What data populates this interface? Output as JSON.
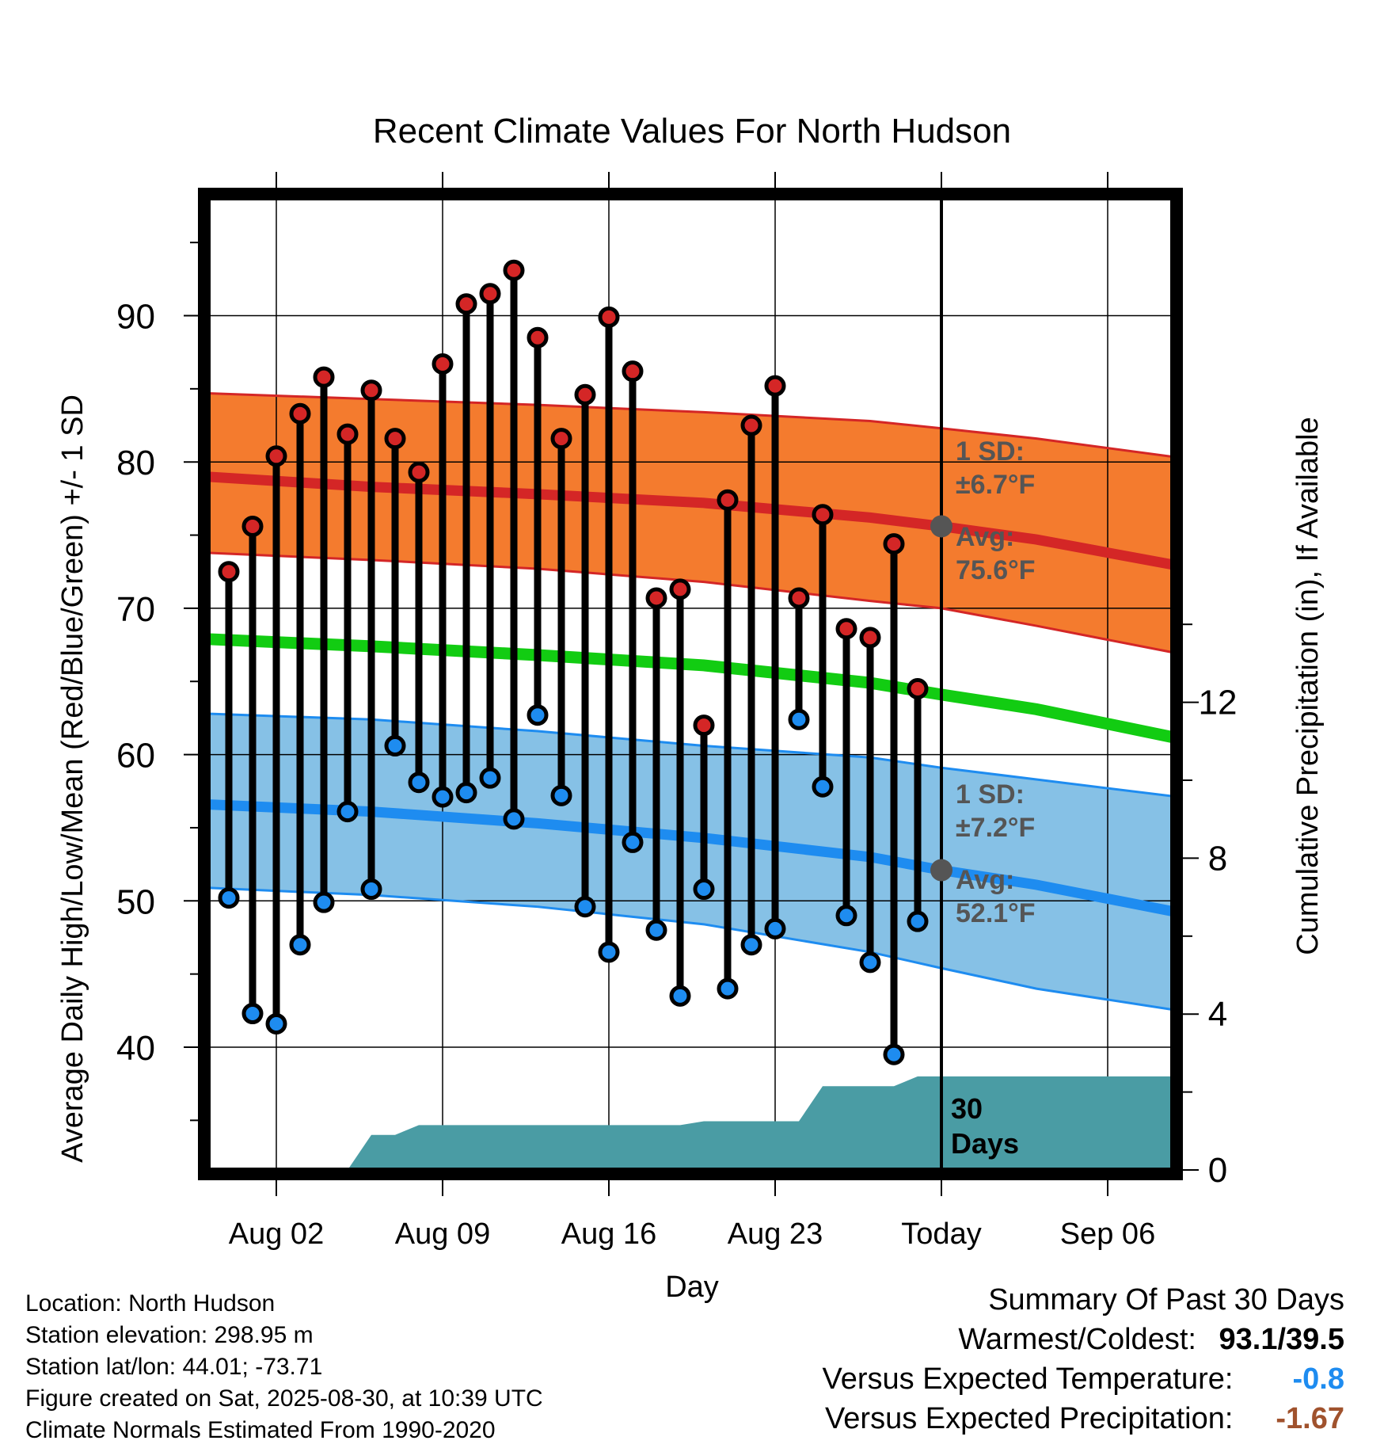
{
  "chart_data": {
    "type": "line",
    "title": "Recent Climate Values For North Hudson",
    "xlabel": "Day",
    "ylabel": "Average Daily High/Low/Mean (Red/Blue/Green) +/- 1 SD",
    "y2label": "Cumulative Precipitation (in), If Available",
    "x_start": "2025-07-31",
    "x_end": "2025-09-09",
    "xlim": [
      "2025-07-30",
      "2025-09-09"
    ],
    "ylim": [
      32,
      98
    ],
    "y2lim": [
      0,
      30
    ],
    "x_ticks": [
      {
        "date": "2025-08-02",
        "label": "Aug 02"
      },
      {
        "date": "2025-08-09",
        "label": "Aug 09"
      },
      {
        "date": "2025-08-16",
        "label": "Aug 16"
      },
      {
        "date": "2025-08-23",
        "label": "Aug 23"
      },
      {
        "date": "2025-08-30",
        "label": "Today"
      },
      {
        "date": "2025-09-06",
        "label": "Sep 06"
      }
    ],
    "y_ticks": [
      40,
      50,
      60,
      70,
      80,
      90
    ],
    "y2_ticks": [
      0,
      4,
      8,
      12
    ],
    "grid": true,
    "today": "2025-08-30",
    "today_label": "30\nDays",
    "dates": [
      "2025-07-31",
      "2025-08-01",
      "2025-08-02",
      "2025-08-03",
      "2025-08-04",
      "2025-08-05",
      "2025-08-06",
      "2025-08-07",
      "2025-08-08",
      "2025-08-09",
      "2025-08-10",
      "2025-08-11",
      "2025-08-12",
      "2025-08-13",
      "2025-08-14",
      "2025-08-15",
      "2025-08-16",
      "2025-08-17",
      "2025-08-18",
      "2025-08-19",
      "2025-08-20",
      "2025-08-21",
      "2025-08-22",
      "2025-08-23",
      "2025-08-24",
      "2025-08-25",
      "2025-08-26",
      "2025-08-27",
      "2025-08-28",
      "2025-08-29"
    ],
    "highs": [
      72.5,
      75.6,
      80.4,
      83.3,
      85.8,
      81.9,
      84.9,
      81.6,
      79.3,
      86.7,
      90.8,
      91.5,
      93.1,
      88.5,
      81.6,
      84.6,
      89.9,
      86.2,
      70.7,
      71.3,
      62.0,
      77.4,
      82.5,
      85.2,
      70.7,
      76.4,
      68.6,
      68.0,
      74.4,
      64.5
    ],
    "lows": [
      50.2,
      42.3,
      41.6,
      47.0,
      49.9,
      56.1,
      50.8,
      60.6,
      58.1,
      57.1,
      57.4,
      58.4,
      55.6,
      62.7,
      57.2,
      49.6,
      46.5,
      54.0,
      48.0,
      43.5,
      50.8,
      44.0,
      47.0,
      48.1,
      62.4,
      57.8,
      49.0,
      45.8,
      39.5,
      48.6
    ],
    "normal_high": {
      "dates": [
        "2025-07-30",
        "2025-08-06",
        "2025-08-13",
        "2025-08-20",
        "2025-08-27",
        "2025-08-30",
        "2025-09-03",
        "2025-09-09"
      ],
      "avg": [
        79.0,
        78.3,
        77.8,
        77.2,
        76.2,
        75.6,
        74.7,
        72.9
      ],
      "upper": [
        84.7,
        84.3,
        83.9,
        83.4,
        82.8,
        82.3,
        81.6,
        80.3
      ],
      "lower": [
        73.8,
        73.3,
        72.7,
        71.8,
        70.5,
        70.0,
        68.8,
        66.9
      ]
    },
    "normal_mean": {
      "dates": [
        "2025-07-30",
        "2025-08-06",
        "2025-08-13",
        "2025-08-20",
        "2025-08-27",
        "2025-08-30",
        "2025-09-03",
        "2025-09-09"
      ],
      "avg": [
        67.9,
        67.4,
        66.8,
        66.1,
        64.9,
        64.1,
        63.1,
        61.1
      ]
    },
    "normal_low": {
      "dates": [
        "2025-07-30",
        "2025-08-06",
        "2025-08-13",
        "2025-08-20",
        "2025-08-27",
        "2025-08-30",
        "2025-09-03",
        "2025-09-09"
      ],
      "avg": [
        56.6,
        56.1,
        55.3,
        54.3,
        53.0,
        52.1,
        51.1,
        49.2
      ],
      "upper": [
        62.8,
        62.4,
        61.6,
        60.6,
        59.8,
        59.1,
        58.3,
        57.1
      ],
      "lower": [
        50.9,
        50.4,
        49.6,
        48.4,
        46.5,
        45.4,
        44.0,
        42.5
      ]
    },
    "precip": {
      "dates": [
        "2025-07-30",
        "2025-08-04",
        "2025-08-05",
        "2025-08-06",
        "2025-08-07",
        "2025-08-08",
        "2025-08-19",
        "2025-08-20",
        "2025-08-24",
        "2025-08-25",
        "2025-08-28",
        "2025-08-29",
        "2025-09-09"
      ],
      "values": [
        0,
        0,
        0,
        0.9,
        0.9,
        1.15,
        1.15,
        1.25,
        1.25,
        2.15,
        2.15,
        2.4,
        2.4
      ]
    },
    "annotations": {
      "high_sd": "1 SD:\n±6.7°F",
      "high_avg": "Avg:\n75.6°F",
      "low_sd": "1 SD:\n±7.2°F",
      "low_avg": "Avg:\n52.1°F"
    }
  },
  "colors": {
    "high_band": "#f47b2e",
    "high_line": "#d42626",
    "mean_line": "#12cc12",
    "low_band": "#86c1e6",
    "low_line": "#1e8cf0",
    "precip": "#4a9ca4",
    "high_marker": "#d42626",
    "low_marker": "#1e8cf0",
    "annotation": "#555555",
    "temp_anomaly": "#1e8cf0",
    "precip_anomaly": "#a0522d"
  },
  "info": {
    "location": "Location: North Hudson",
    "elevation": "Station elevation: 298.95 m",
    "latlon": "Station lat/lon: 44.01; -73.71",
    "created": "Figure created on Sat, 2025-08-30, at 10:39 UTC",
    "normals": "Climate Normals Estimated From 1990-2020"
  },
  "summary": {
    "title": "Summary Of Past 30 Days",
    "warmest_label": "Warmest/Coldest:",
    "warmest_value": "93.1/39.5",
    "temp_label": "Versus Expected Temperature:",
    "temp_value": "-0.8",
    "precip_label": "Versus Expected Precipitation:",
    "precip_value": "-1.67"
  }
}
